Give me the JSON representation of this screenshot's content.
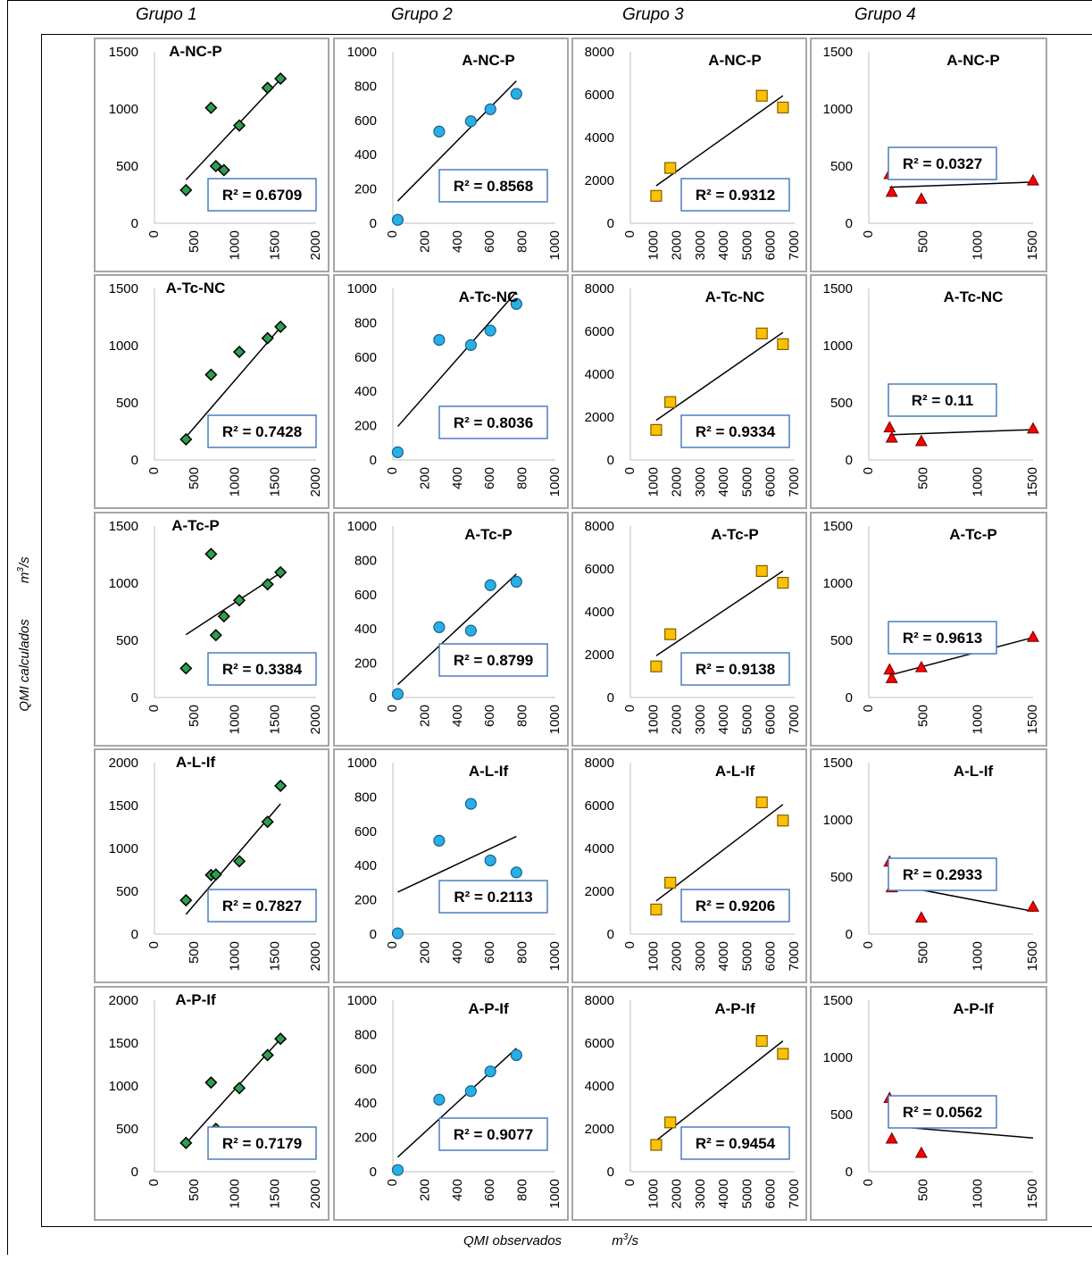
{
  "group_labels": [
    "Grupo 1",
    "Grupo 2",
    "Grupo 3",
    "Grupo 4"
  ],
  "y_axis_label": {
    "text": "QMI calculados",
    "unit": "m",
    "unit_exp": "3",
    "unit_tail": "/s"
  },
  "x_axis_label": {
    "text": "QMI observados",
    "unit": "m",
    "unit_exp": "3",
    "unit_tail": "/s"
  },
  "colors": {
    "g1": "#2e9e4f",
    "g2": "#26b0e6",
    "g3": "#ffc000",
    "g4": "#ff0000",
    "r2_border": "#4a7fbf"
  },
  "chart_data": [
    {
      "type": "scatter",
      "group": "Grupo 1",
      "title": "A-NC-P",
      "r2": "R² = 0.6709",
      "xlim": [
        0,
        2000
      ],
      "ylim": [
        0,
        1500
      ],
      "xticks": [
        0,
        500,
        1000,
        1500,
        2000
      ],
      "yticks": [
        0,
        500,
        1000,
        1500
      ],
      "points": [
        [
          390,
          290
        ],
        [
          700,
          1010
        ],
        [
          760,
          500
        ],
        [
          860,
          465
        ],
        [
          1050,
          855
        ],
        [
          1400,
          1185
        ],
        [
          1560,
          1265
        ]
      ],
      "trend": [
        [
          390,
          380
        ],
        [
          1560,
          1260
        ]
      ]
    },
    {
      "type": "scatter",
      "group": "Grupo 2",
      "title": "A-NC-P",
      "r2": "R² = 0.8568",
      "xlim": [
        0,
        1000
      ],
      "ylim": [
        0,
        1000
      ],
      "xticks": [
        0,
        200,
        400,
        600,
        800,
        1000
      ],
      "yticks": [
        0,
        200,
        400,
        600,
        800,
        1000
      ],
      "points": [
        [
          30,
          20
        ],
        [
          285,
          535
        ],
        [
          480,
          595
        ],
        [
          600,
          665
        ],
        [
          760,
          755
        ]
      ],
      "trend": [
        [
          30,
          130
        ],
        [
          760,
          830
        ]
      ]
    },
    {
      "type": "scatter",
      "group": "Grupo 3",
      "title": "A-NC-P",
      "r2": "R² = 0.9312",
      "xlim": [
        0,
        7000
      ],
      "ylim": [
        0,
        8000
      ],
      "xticks": [
        0,
        1000,
        2000,
        3000,
        4000,
        5000,
        6000,
        7000
      ],
      "yticks": [
        0,
        2000,
        4000,
        6000,
        8000
      ],
      "points": [
        [
          1100,
          1280
        ],
        [
          1700,
          2580
        ],
        [
          5600,
          5950
        ],
        [
          6500,
          5400
        ]
      ],
      "trend": [
        [
          1100,
          1750
        ],
        [
          6500,
          5950
        ]
      ]
    },
    {
      "type": "scatter",
      "group": "Grupo 4",
      "title": "A-NC-P",
      "r2": "R² = 0.0327",
      "xlim": [
        0,
        1500
      ],
      "ylim": [
        0,
        1500
      ],
      "xticks": [
        0,
        500,
        1000,
        1500
      ],
      "yticks": [
        0,
        500,
        1000,
        1500
      ],
      "points": [
        [
          190,
          430
        ],
        [
          210,
          275
        ],
        [
          480,
          215
        ],
        [
          1500,
          375
        ]
      ],
      "trend": [
        [
          190,
          315
        ],
        [
          1500,
          360
        ]
      ]
    },
    {
      "type": "scatter",
      "group": "Grupo 1",
      "title": "A-Tc-NC",
      "r2": "R² = 0.7428",
      "xlim": [
        0,
        2000
      ],
      "ylim": [
        0,
        1500
      ],
      "xticks": [
        0,
        500,
        1000,
        1500,
        2000
      ],
      "yticks": [
        0,
        500,
        1000,
        1500
      ],
      "points": [
        [
          390,
          180
        ],
        [
          700,
          745
        ],
        [
          760,
          305
        ],
        [
          860,
          305
        ],
        [
          1050,
          945
        ],
        [
          1400,
          1065
        ],
        [
          1560,
          1165
        ]
      ],
      "trend": [
        [
          390,
          200
        ],
        [
          1560,
          1160
        ]
      ]
    },
    {
      "type": "scatter",
      "group": "Grupo 2",
      "title": "A-Tc-NC",
      "r2": "R² = 0.8036",
      "xlim": [
        0,
        1000
      ],
      "ylim": [
        0,
        1000
      ],
      "xticks": [
        0,
        200,
        400,
        600,
        800,
        1000
      ],
      "yticks": [
        0,
        200,
        400,
        600,
        800,
        1000
      ],
      "points": [
        [
          30,
          45
        ],
        [
          285,
          700
        ],
        [
          480,
          670
        ],
        [
          600,
          755
        ],
        [
          760,
          910
        ]
      ],
      "trend": [
        [
          30,
          195
        ],
        [
          760,
          980
        ]
      ]
    },
    {
      "type": "scatter",
      "group": "Grupo 3",
      "title": "A-Tc-NC",
      "r2": "R² = 0.9334",
      "xlim": [
        0,
        7000
      ],
      "ylim": [
        0,
        8000
      ],
      "xticks": [
        0,
        1000,
        2000,
        3000,
        4000,
        5000,
        6000,
        7000
      ],
      "yticks": [
        0,
        2000,
        4000,
        6000,
        8000
      ],
      "points": [
        [
          1100,
          1400
        ],
        [
          1700,
          2700
        ],
        [
          5600,
          5900
        ],
        [
          6500,
          5400
        ]
      ],
      "trend": [
        [
          1100,
          1850
        ],
        [
          6500,
          5950
        ]
      ]
    },
    {
      "type": "scatter",
      "group": "Grupo 4",
      "title": "A-Tc-NC",
      "r2": "R² = 0.11",
      "xlim": [
        0,
        1500
      ],
      "ylim": [
        0,
        1500
      ],
      "xticks": [
        0,
        500,
        1000,
        1500
      ],
      "yticks": [
        0,
        500,
        1000,
        1500
      ],
      "points": [
        [
          190,
          285
        ],
        [
          210,
          195
        ],
        [
          480,
          165
        ],
        [
          1500,
          275
        ]
      ],
      "trend": [
        [
          190,
          220
        ],
        [
          1500,
          265
        ]
      ]
    },
    {
      "type": "scatter",
      "group": "Grupo 1",
      "title": "A-Tc-P",
      "r2": "R² = 0.3384",
      "xlim": [
        0,
        2000
      ],
      "ylim": [
        0,
        1500
      ],
      "xticks": [
        0,
        500,
        1000,
        1500,
        2000
      ],
      "yticks": [
        0,
        500,
        1000,
        1500
      ],
      "points": [
        [
          390,
          255
        ],
        [
          700,
          1255
        ],
        [
          760,
          545
        ],
        [
          860,
          710
        ],
        [
          1050,
          850
        ],
        [
          1400,
          990
        ],
        [
          1560,
          1095
        ]
      ],
      "trend": [
        [
          390,
          550
        ],
        [
          1560,
          1090
        ]
      ]
    },
    {
      "type": "scatter",
      "group": "Grupo 2",
      "title": "A-Tc-P",
      "r2": "R² = 0.8799",
      "xlim": [
        0,
        1000
      ],
      "ylim": [
        0,
        1000
      ],
      "xticks": [
        0,
        200,
        400,
        600,
        800,
        1000
      ],
      "yticks": [
        0,
        200,
        400,
        600,
        800,
        1000
      ],
      "points": [
        [
          30,
          20
        ],
        [
          285,
          410
        ],
        [
          480,
          390
        ],
        [
          600,
          655
        ],
        [
          760,
          675
        ]
      ],
      "trend": [
        [
          30,
          75
        ],
        [
          760,
          720
        ]
      ]
    },
    {
      "type": "scatter",
      "group": "Grupo 3",
      "title": "A-Tc-P",
      "r2": "R² = 0.9138",
      "xlim": [
        0,
        7000
      ],
      "ylim": [
        0,
        8000
      ],
      "xticks": [
        0,
        1000,
        2000,
        3000,
        4000,
        5000,
        6000,
        7000
      ],
      "yticks": [
        0,
        2000,
        4000,
        6000,
        8000
      ],
      "points": [
        [
          1100,
          1450
        ],
        [
          1700,
          2950
        ],
        [
          5600,
          5900
        ],
        [
          6500,
          5350
        ]
      ],
      "trend": [
        [
          1100,
          1950
        ],
        [
          6500,
          5900
        ]
      ]
    },
    {
      "type": "scatter",
      "group": "Grupo 4",
      "title": "A-Tc-P",
      "r2": "R² = 0.9613",
      "xlim": [
        0,
        1500
      ],
      "ylim": [
        0,
        1500
      ],
      "xticks": [
        0,
        500,
        1000,
        1500
      ],
      "yticks": [
        0,
        500,
        1000,
        1500
      ],
      "points": [
        [
          190,
          245
        ],
        [
          210,
          170
        ],
        [
          480,
          265
        ],
        [
          1500,
          530
        ]
      ],
      "trend": [
        [
          190,
          195
        ],
        [
          1500,
          525
        ]
      ]
    },
    {
      "type": "scatter",
      "group": "Grupo 1",
      "title": "A-L-If",
      "r2": "R² = 0.7827",
      "xlim": [
        0,
        2000
      ],
      "ylim": [
        0,
        2000
      ],
      "xticks": [
        0,
        500,
        1000,
        1500,
        2000
      ],
      "yticks": [
        0,
        500,
        1000,
        1500,
        2000
      ],
      "points": [
        [
          390,
          395
        ],
        [
          700,
          690
        ],
        [
          760,
          695
        ],
        [
          860,
          250
        ],
        [
          1050,
          850
        ],
        [
          1400,
          1310
        ],
        [
          1560,
          1730
        ]
      ],
      "trend": [
        [
          390,
          230
        ],
        [
          1560,
          1520
        ]
      ]
    },
    {
      "type": "scatter",
      "group": "Grupo 2",
      "title": "A-L-If",
      "r2": "R² = 0.2113",
      "xlim": [
        0,
        1000
      ],
      "ylim": [
        0,
        1000
      ],
      "xticks": [
        0,
        200,
        400,
        600,
        800,
        1000
      ],
      "yticks": [
        0,
        200,
        400,
        600,
        800,
        1000
      ],
      "points": [
        [
          30,
          5
        ],
        [
          285,
          545
        ],
        [
          480,
          760
        ],
        [
          600,
          430
        ],
        [
          760,
          360
        ]
      ],
      "trend": [
        [
          30,
          245
        ],
        [
          760,
          570
        ]
      ]
    },
    {
      "type": "scatter",
      "group": "Grupo 3",
      "title": "A-L-If",
      "r2": "R² = 0.9206",
      "xlim": [
        0,
        7000
      ],
      "ylim": [
        0,
        8000
      ],
      "xticks": [
        0,
        1000,
        2000,
        3000,
        4000,
        5000,
        6000,
        7000
      ],
      "yticks": [
        0,
        2000,
        4000,
        6000,
        8000
      ],
      "points": [
        [
          1100,
          1150
        ],
        [
          1700,
          2400
        ],
        [
          5600,
          6150
        ],
        [
          6500,
          5300
        ]
      ],
      "trend": [
        [
          1100,
          1550
        ],
        [
          6500,
          6050
        ]
      ]
    },
    {
      "type": "scatter",
      "group": "Grupo 4",
      "title": "A-L-If",
      "r2": "R² = 0.2933",
      "xlim": [
        0,
        1500
      ],
      "ylim": [
        0,
        1500
      ],
      "xticks": [
        0,
        500,
        1000,
        1500
      ],
      "yticks": [
        0,
        500,
        1000,
        1500
      ],
      "points": [
        [
          190,
          635
        ],
        [
          210,
          410
        ],
        [
          480,
          145
        ],
        [
          1500,
          240
        ]
      ],
      "trend": [
        [
          190,
          440
        ],
        [
          1500,
          200
        ]
      ]
    },
    {
      "type": "scatter",
      "group": "Grupo 1",
      "title": "A-P-If",
      "r2": "R² = 0.7179",
      "xlim": [
        0,
        2000
      ],
      "ylim": [
        0,
        2000
      ],
      "xticks": [
        0,
        500,
        1000,
        1500,
        2000
      ],
      "yticks": [
        0,
        500,
        1000,
        1500,
        2000
      ],
      "points": [
        [
          390,
          335
        ],
        [
          700,
          1040
        ],
        [
          760,
          500
        ],
        [
          860,
          390
        ],
        [
          1050,
          975
        ],
        [
          1400,
          1360
        ],
        [
          1560,
          1550
        ]
      ],
      "trend": [
        [
          390,
          330
        ],
        [
          1560,
          1550
        ]
      ]
    },
    {
      "type": "scatter",
      "group": "Grupo 2",
      "title": "A-P-If",
      "r2": "R² = 0.9077",
      "xlim": [
        0,
        1000
      ],
      "ylim": [
        0,
        1000
      ],
      "xticks": [
        0,
        200,
        400,
        600,
        800,
        1000
      ],
      "yticks": [
        0,
        200,
        400,
        600,
        800,
        1000
      ],
      "points": [
        [
          30,
          10
        ],
        [
          285,
          420
        ],
        [
          480,
          470
        ],
        [
          600,
          585
        ],
        [
          760,
          680
        ]
      ],
      "trend": [
        [
          30,
          85
        ],
        [
          760,
          720
        ]
      ]
    },
    {
      "type": "scatter",
      "group": "Grupo 3",
      "title": "A-P-If",
      "r2": "R² = 0.9454",
      "xlim": [
        0,
        7000
      ],
      "ylim": [
        0,
        8000
      ],
      "xticks": [
        0,
        1000,
        2000,
        3000,
        4000,
        5000,
        6000,
        7000
      ],
      "yticks": [
        0,
        2000,
        4000,
        6000,
        8000
      ],
      "points": [
        [
          1100,
          1250
        ],
        [
          1700,
          2300
        ],
        [
          5600,
          6100
        ],
        [
          6500,
          5500
        ]
      ],
      "trend": [
        [
          1100,
          1450
        ],
        [
          6500,
          6100
        ]
      ]
    },
    {
      "type": "scatter",
      "group": "Grupo 4",
      "title": "A-P-If",
      "r2": "R² = 0.0562",
      "xlim": [
        0,
        1500
      ],
      "ylim": [
        0,
        1500
      ],
      "xticks": [
        0,
        500,
        1000,
        1500
      ],
      "yticks": [
        0,
        500,
        1000,
        1500
      ],
      "points": [
        [
          190,
          645
        ],
        [
          210,
          290
        ],
        [
          480,
          165
        ]
      ],
      "trend": [
        [
          190,
          400
        ],
        [
          1500,
          295
        ]
      ]
    }
  ]
}
